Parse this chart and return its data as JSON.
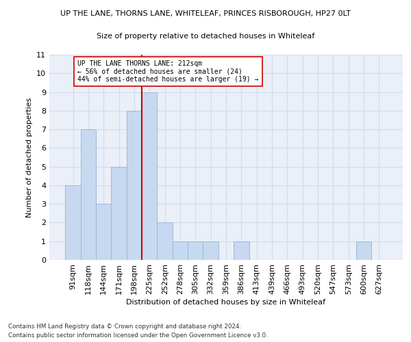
{
  "title1": "UP THE LANE, THORNS LANE, WHITELEAF, PRINCES RISBOROUGH, HP27 0LT",
  "title2": "Size of property relative to detached houses in Whiteleaf",
  "xlabel": "Distribution of detached houses by size in Whiteleaf",
  "ylabel": "Number of detached properties",
  "bin_labels": [
    "91sqm",
    "118sqm",
    "144sqm",
    "171sqm",
    "198sqm",
    "225sqm",
    "252sqm",
    "278sqm",
    "305sqm",
    "332sqm",
    "359sqm",
    "386sqm",
    "413sqm",
    "439sqm",
    "466sqm",
    "493sqm",
    "520sqm",
    "547sqm",
    "573sqm",
    "600sqm",
    "627sqm"
  ],
  "bar_heights": [
    4,
    7,
    3,
    5,
    8,
    9,
    2,
    1,
    1,
    1,
    0,
    1,
    0,
    0,
    0,
    0,
    0,
    0,
    0,
    1,
    0
  ],
  "bar_color": "#c6d9f0",
  "bar_edge_color": "#9db8d8",
  "vline_x": 4.5,
  "vline_color": "#cc0000",
  "annotation_text": "UP THE LANE THORNS LANE: 212sqm\n← 56% of detached houses are smaller (24)\n44% of semi-detached houses are larger (19) →",
  "annotation_box_color": "#ffffff",
  "annotation_box_edge": "#cc0000",
  "ylim": [
    0,
    11
  ],
  "yticks": [
    0,
    1,
    2,
    3,
    4,
    5,
    6,
    7,
    8,
    9,
    10,
    11
  ],
  "grid_color": "#d0dcec",
  "bg_color": "#eaeff8",
  "footer1": "Contains HM Land Registry data © Crown copyright and database right 2024.",
  "footer2": "Contains public sector information licensed under the Open Government Licence v3.0."
}
